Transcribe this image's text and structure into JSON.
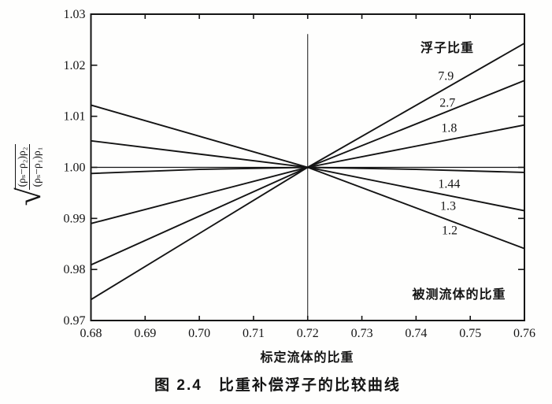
{
  "figure": {
    "caption": "图 2.4　比重补偿浮子的比较曲线"
  },
  "chart_data": {
    "type": "line",
    "title": "图 2.4　比重补偿浮子的比较曲线",
    "xlabel": "标定流体的比重",
    "ylabel": "√[(ρₛ−ρ₂)ρ₂ / (ρₛ−ρ₁)ρ₁]",
    "ylabel_radical": "√",
    "ylabel_numerator": "(ρₛ−ρ₂)ρ₂",
    "ylabel_denominator": "(ρₛ−ρ₁)ρ₁",
    "legend_title": "浮子比重",
    "annotation": "被测流体的比重",
    "xlim": [
      0.68,
      0.76
    ],
    "ylim": [
      0.97,
      1.03
    ],
    "x_ticks": [
      0.68,
      0.69,
      0.7,
      0.71,
      0.72,
      0.73,
      0.74,
      0.75,
      0.76
    ],
    "x_tick_labels": [
      "0.68",
      "0.69",
      "0.70",
      "0.71",
      "0.72",
      "0.73",
      "0.74",
      "0.75",
      "0.76"
    ],
    "y_ticks": [
      0.97,
      0.98,
      0.99,
      1.0,
      1.01,
      1.02,
      1.03
    ],
    "y_tick_labels": [
      "0.97",
      "0.98",
      "0.99",
      "1.00",
      "1.01",
      "1.02",
      "1.03"
    ],
    "grid": false,
    "crossover_point": {
      "x": 0.72,
      "y": 1.0
    },
    "vline": {
      "x": 0.72,
      "y_bottom": 0.97,
      "y_top": 1.0261
    },
    "series": [
      {
        "name": "7.9",
        "x": [
          0.68,
          0.72,
          0.76
        ],
        "y": [
          0.9741,
          1.0,
          1.0243
        ],
        "label_pos": {
          "x": 0.7455,
          "y": 1.018
        }
      },
      {
        "name": "2.7",
        "x": [
          0.68,
          0.72,
          0.76
        ],
        "y": [
          0.9809,
          1.0,
          1.017
        ],
        "label_pos": {
          "x": 0.7458,
          "y": 1.0127
        }
      },
      {
        "name": "1.8",
        "x": [
          0.68,
          0.72,
          0.76
        ],
        "y": [
          0.989,
          1.0,
          1.0083
        ],
        "label_pos": {
          "x": 0.7461,
          "y": 1.0078
        }
      },
      {
        "name": "1.44",
        "x": [
          0.68,
          0.7,
          0.72,
          0.74,
          0.76
        ],
        "y": [
          0.9988,
          0.9996,
          1.0,
          0.9996,
          0.999
        ],
        "label_pos": {
          "x": 0.7461,
          "y": 0.9968
        }
      },
      {
        "name": "1.3",
        "x": [
          0.68,
          0.72,
          0.76
        ],
        "y": [
          1.0052,
          1.0,
          0.9915
        ],
        "label_pos": {
          "x": 0.7459,
          "y": 0.9925
        }
      },
      {
        "name": "1.2",
        "x": [
          0.68,
          0.72,
          0.76
        ],
        "y": [
          1.0122,
          1.0,
          0.9841
        ],
        "label_pos": {
          "x": 0.7462,
          "y": 0.9877
        }
      },
      {
        "name": "",
        "role": "reference-line",
        "x": [
          0.68,
          0.76
        ],
        "y": [
          1.0,
          1.0
        ],
        "label_pos": null
      }
    ],
    "line_color": "#141414",
    "background_color": "#fefefd"
  }
}
